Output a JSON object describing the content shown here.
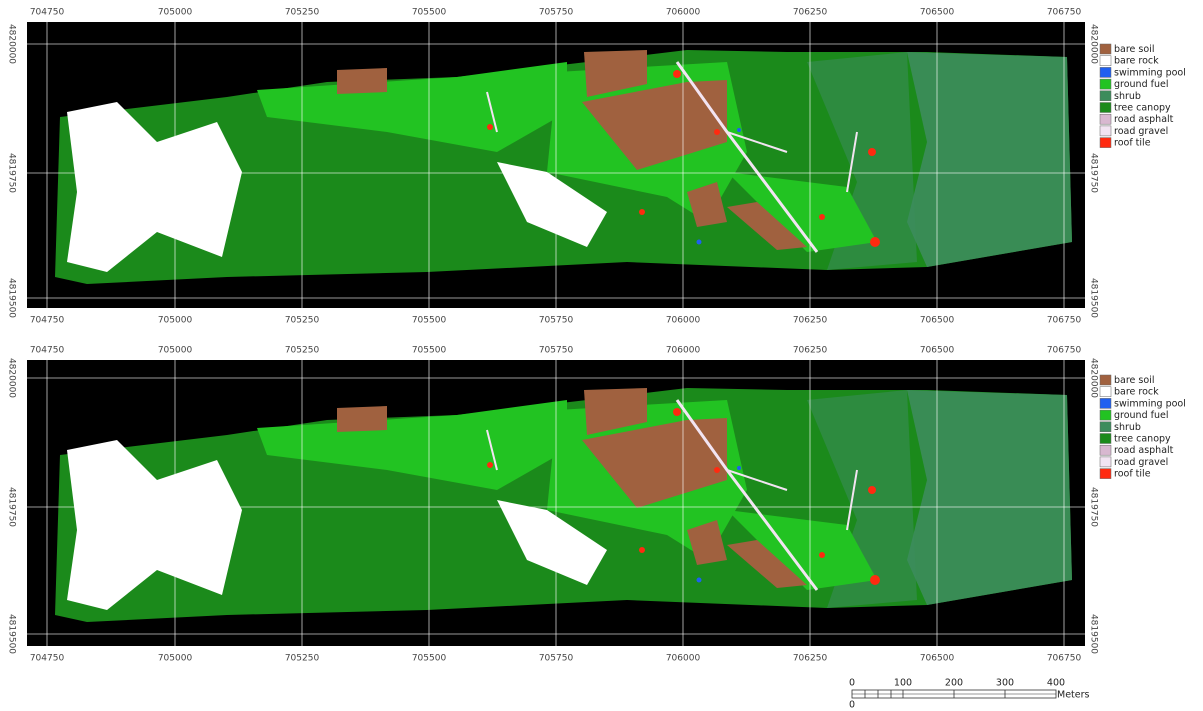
{
  "maps": [
    {
      "x_labels": [
        "704750",
        "705000",
        "705250",
        "705500",
        "705750",
        "706000",
        "706250",
        "706500",
        "706750"
      ],
      "y_labels": [
        "4820000",
        "4819750",
        "4819500"
      ]
    },
    {
      "x_labels": [
        "704750",
        "705000",
        "705250",
        "705500",
        "705750",
        "706000",
        "706250",
        "706500",
        "706750"
      ],
      "y_labels": [
        "4820000",
        "4819750",
        "4819500"
      ]
    }
  ],
  "legend": [
    {
      "label": "bare soil",
      "color": "#a0613f"
    },
    {
      "label": "bare rock",
      "color": "#ffffff"
    },
    {
      "label": "swimming pool",
      "color": "#1f5ff0"
    },
    {
      "label": "ground fuel",
      "color": "#22c322"
    },
    {
      "label": "shrub",
      "color": "#3d8c5c"
    },
    {
      "label": "tree canopy",
      "color": "#1b8a1b"
    },
    {
      "label": "road asphalt",
      "color": "#d8b8d0"
    },
    {
      "label": "road gravel",
      "color": "#f2e4f2"
    },
    {
      "label": "roof tile",
      "color": "#ff2a10"
    }
  ],
  "scale_bar": {
    "labels": [
      "0",
      "100",
      "200",
      "300",
      "400"
    ],
    "unit": "Meters",
    "origin": "0"
  }
}
